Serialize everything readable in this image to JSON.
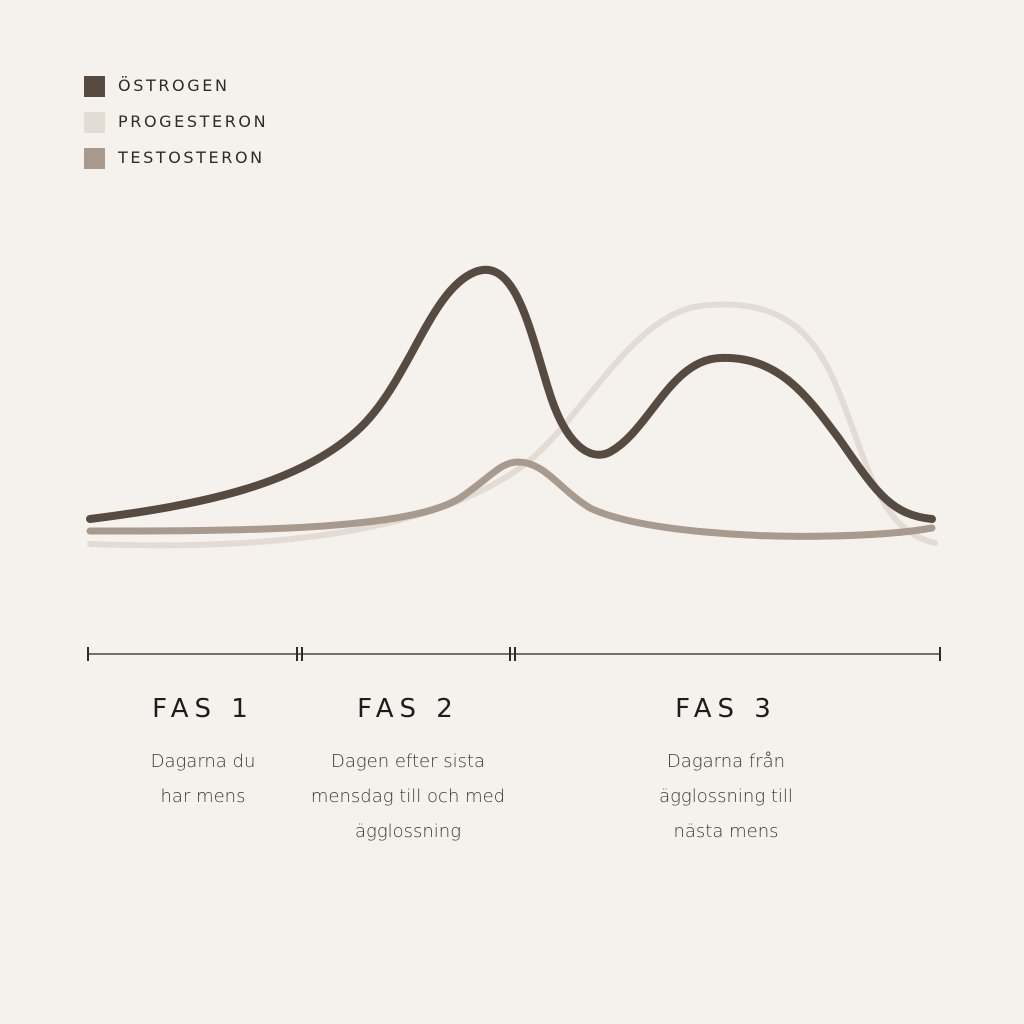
{
  "legend": [
    {
      "label": "ÖSTROGEN",
      "color": "#574b41"
    },
    {
      "label": "PROGESTERON",
      "color": "#e3dcd4"
    },
    {
      "label": "TESTOSTERON",
      "color": "#a89b8e"
    }
  ],
  "phases": [
    {
      "title": "FAS 1",
      "desc_lines": [
        "Dagarna du",
        "har mens"
      ]
    },
    {
      "title": "FAS 2",
      "desc_lines": [
        "Dagen efter sista",
        "mensdag till och med",
        "ägglossning"
      ]
    },
    {
      "title": "FAS 3",
      "desc_lines": [
        "Dagarna från",
        "ägglossning till",
        "nästa mens"
      ]
    }
  ],
  "chart_data": {
    "type": "line",
    "title": "",
    "xlabel": "",
    "ylabel": "",
    "grid": false,
    "legend_position": "top-left",
    "series": [
      {
        "name": "ÖSTROGEN",
        "color": "#574b41"
      },
      {
        "name": "PROGESTERON",
        "color": "#e3dcd4"
      },
      {
        "name": "TESTOSTERON",
        "color": "#a89b8e"
      }
    ]
  }
}
